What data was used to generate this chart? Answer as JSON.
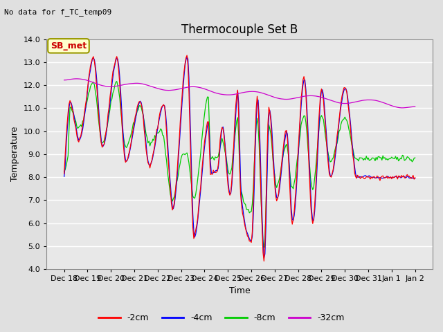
{
  "title": "Thermocouple Set B",
  "no_data_text": "No data for f_TC_temp09",
  "ylabel": "Temperature",
  "xlabel": "Time",
  "ylim": [
    4.0,
    14.0
  ],
  "yticks": [
    4.0,
    5.0,
    6.0,
    7.0,
    8.0,
    9.0,
    10.0,
    11.0,
    12.0,
    13.0,
    14.0
  ],
  "xtick_labels": [
    "Dec 18",
    "Dec 19",
    "Dec 20",
    "Dec 21",
    "Dec 22",
    "Dec 23",
    "Dec 24",
    "Dec 25",
    "Dec 26",
    "Dec 27",
    "Dec 28",
    "Dec 29",
    "Dec 30",
    "Dec 31",
    "Jan 1",
    "Jan 2"
  ],
  "colors": {
    "-2cm": "#ff0000",
    "-4cm": "#0000ff",
    "-8cm": "#00cc00",
    "-32cm": "#cc00cc"
  },
  "legend_label": "SB_met",
  "legend_box_facecolor": "#ffffcc",
  "legend_box_edgecolor": "#999900",
  "plot_bg": "#e8e8e8",
  "fig_bg": "#e0e0e0",
  "grid_color": "#ffffff",
  "title_fontsize": 12,
  "tick_fontsize": 8,
  "label_fontsize": 9
}
